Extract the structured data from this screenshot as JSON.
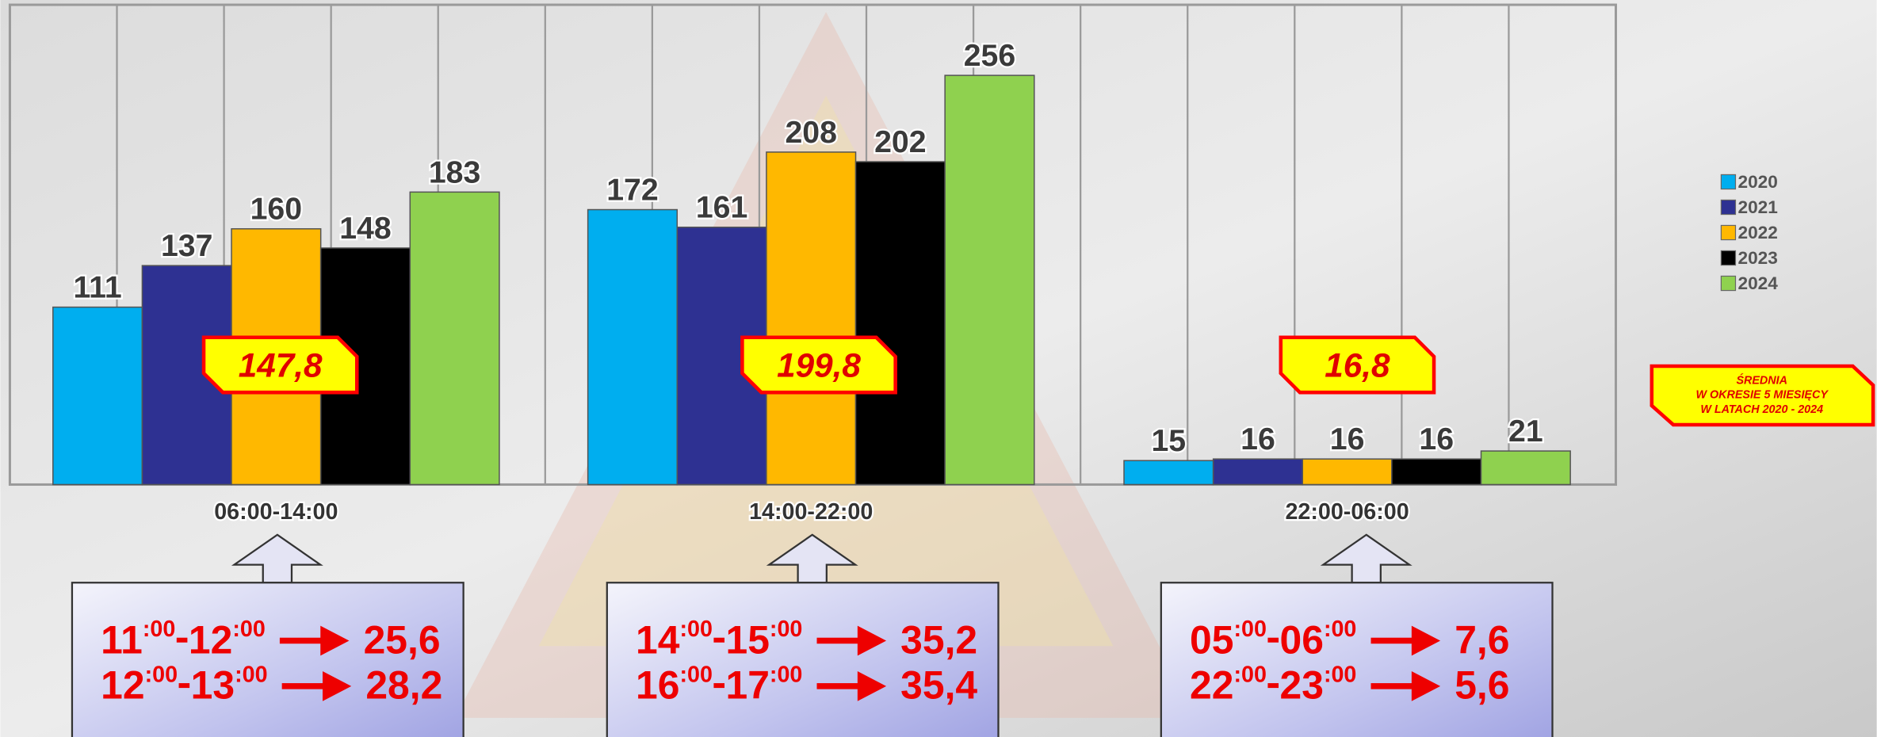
{
  "chart_data": {
    "type": "bar",
    "categories": [
      "06:00-14:00",
      "14:00-22:00",
      "22:00-06:00"
    ],
    "series": [
      {
        "name": "2020",
        "color": "#00aeef",
        "values": [
          111,
          172,
          15
        ]
      },
      {
        "name": "2021",
        "color": "#2e3192",
        "values": [
          137,
          161,
          16
        ]
      },
      {
        "name": "2022",
        "color": "#ffb800",
        "values": [
          160,
          208,
          16
        ]
      },
      {
        "name": "2023",
        "color": "#000000",
        "values": [
          148,
          202,
          16
        ]
      },
      {
        "name": "2024",
        "color": "#8fd14f",
        "values": [
          183,
          256,
          21
        ]
      }
    ],
    "averages": [
      147.8,
      199.8,
      16.8
    ],
    "average_labels": [
      "147,8",
      "199,8",
      "16,8"
    ],
    "legend": "right",
    "note": [
      "ŚREDNIA",
      "W OKRESIE 5 MIESIĘCY",
      "W LATACH 2020 - 2024"
    ]
  },
  "boxes": [
    {
      "rows": [
        {
          "hour_from": "11",
          "min_from": ":00",
          "hour_to": "12",
          "min_to": ":00",
          "value": "25,6"
        },
        {
          "hour_from": "12",
          "min_from": ":00",
          "hour_to": "13",
          "min_to": ":00",
          "value": "28,2"
        }
      ]
    },
    {
      "rows": [
        {
          "hour_from": "14",
          "min_from": ":00",
          "hour_to": "15",
          "min_to": ":00",
          "value": "35,2"
        },
        {
          "hour_from": "16",
          "min_from": ":00",
          "hour_to": "17",
          "min_to": ":00",
          "value": "35,4"
        }
      ]
    },
    {
      "rows": [
        {
          "hour_from": "05",
          "min_from": ":00",
          "hour_to": "06",
          "min_to": ":00",
          "value": "7,6"
        },
        {
          "hour_from": "22",
          "min_from": ":00",
          "hour_to": "23",
          "min_to": ":00",
          "value": "5,6"
        }
      ]
    }
  ]
}
